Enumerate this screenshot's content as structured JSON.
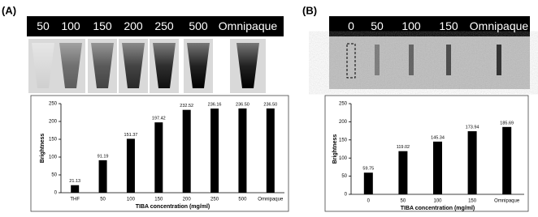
{
  "chart_data": [
    {
      "type": "bar",
      "panel_label": "(A)",
      "image_labels": [
        "50",
        "100",
        "150",
        "200",
        "250",
        "500",
        "Omnipaque"
      ],
      "x_label": "TIBA concentration (mg/ml)",
      "y_label": "Brightness",
      "categories": [
        "THF",
        "50",
        "100",
        "150",
        "200",
        "250",
        "500",
        "Omnipaque"
      ],
      "values": [
        21.13,
        91.19,
        151.37,
        197.42,
        232.52,
        236.16,
        236.5,
        236.5
      ],
      "value_labels": [
        "21.13",
        "91.19",
        "151.37",
        "197.42",
        "232.52",
        "236.16",
        "236.50",
        "236.50"
      ],
      "color": "#000000",
      "ylim": [
        0,
        250
      ],
      "yticks": [
        0,
        50,
        100,
        150,
        200,
        250
      ],
      "grid": false
    },
    {
      "type": "bar",
      "panel_label": "(B)",
      "image_labels": [
        "0",
        "50",
        "100",
        "150",
        "Omnipaque"
      ],
      "x_label": "TIBA concentration (mg/ml)",
      "y_label": "Brightness",
      "categories": [
        "0",
        "50",
        "100",
        "150",
        "Omnipaque"
      ],
      "values": [
        59.75,
        119.02,
        145.34,
        173.94,
        185.69
      ],
      "value_labels": [
        "59.75",
        "119.02",
        "145.34",
        "173.94",
        "185.69"
      ],
      "color": "#000000",
      "ylim": [
        0,
        250
      ],
      "yticks": [
        0,
        50,
        100,
        150,
        200,
        250
      ],
      "grid": false
    }
  ]
}
